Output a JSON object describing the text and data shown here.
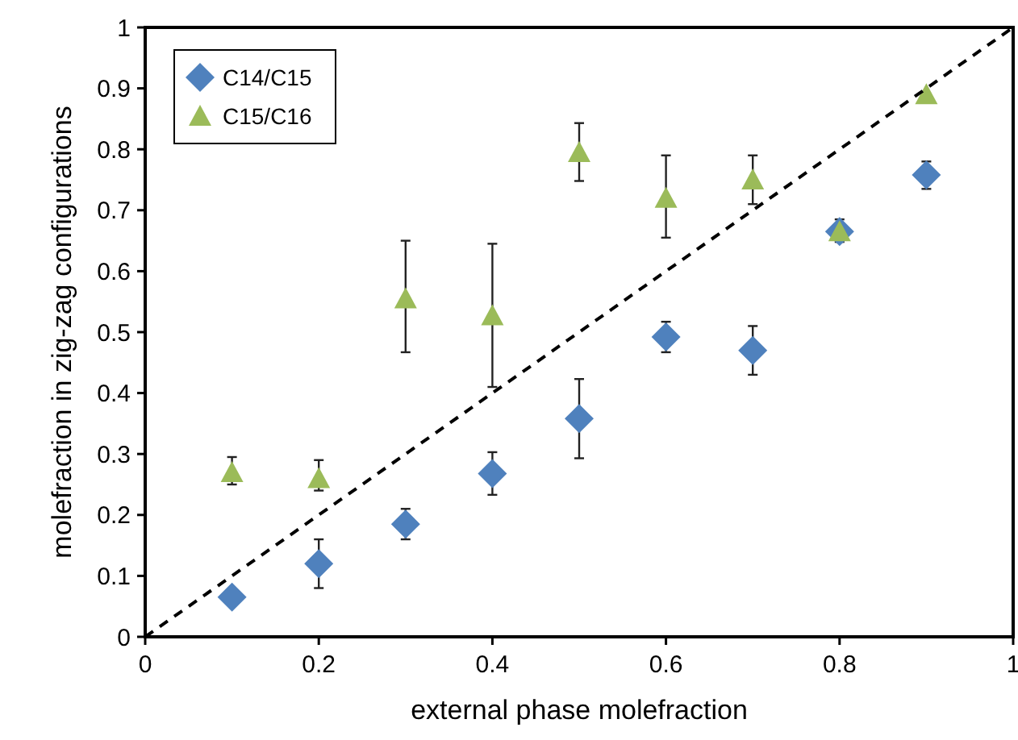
{
  "chart_data": {
    "type": "scatter",
    "xlabel": "external phase molefraction",
    "ylabel": "molefraction in zig-zag configurations",
    "xlim": [
      0,
      1
    ],
    "ylim": [
      0,
      1
    ],
    "xticks": [
      0,
      0.2,
      0.4,
      0.6,
      0.8,
      1
    ],
    "yticks": [
      0,
      0.1,
      0.2,
      0.3,
      0.4,
      0.5,
      0.6,
      0.7,
      0.8,
      0.9,
      1
    ],
    "grid": false,
    "legend": "top left",
    "series": [
      {
        "name": "C14/C15",
        "color": "#4f81bd",
        "marker": "diamond",
        "x": [
          0.1,
          0.2,
          0.3,
          0.4,
          0.5,
          0.6,
          0.7,
          0.8,
          0.9
        ],
        "values": [
          0.065,
          0.12,
          0.185,
          0.268,
          0.358,
          0.492,
          0.47,
          0.665,
          0.758
        ],
        "errors": [
          null,
          [
            0.08,
            0.16
          ],
          [
            0.16,
            0.21
          ],
          [
            0.233,
            0.303
          ],
          [
            0.293,
            0.423
          ],
          [
            0.467,
            0.517
          ],
          [
            0.43,
            0.51
          ],
          [
            0.648,
            0.685
          ],
          [
            0.735,
            0.78
          ]
        ]
      },
      {
        "name": "C15/C16",
        "color": "#9bbb59",
        "marker": "triangle",
        "x": [
          0.1,
          0.2,
          0.3,
          0.4,
          0.5,
          0.6,
          0.7,
          0.8,
          0.9
        ],
        "values": [
          0.27,
          0.26,
          0.555,
          0.527,
          0.795,
          0.72,
          0.75,
          0.665,
          0.89
        ],
        "errors": [
          [
            0.25,
            0.295
          ],
          [
            0.24,
            0.29
          ],
          [
            0.467,
            0.65
          ],
          [
            0.41,
            0.645
          ],
          [
            0.748,
            0.843
          ],
          [
            0.655,
            0.79
          ],
          [
            0.71,
            0.79
          ],
          null,
          null
        ]
      },
      {
        "type": "line",
        "color": "#000000",
        "marker": "none",
        "line_style": "dashed",
        "x": [
          0,
          1
        ],
        "values": [
          0,
          1
        ]
      }
    ]
  }
}
